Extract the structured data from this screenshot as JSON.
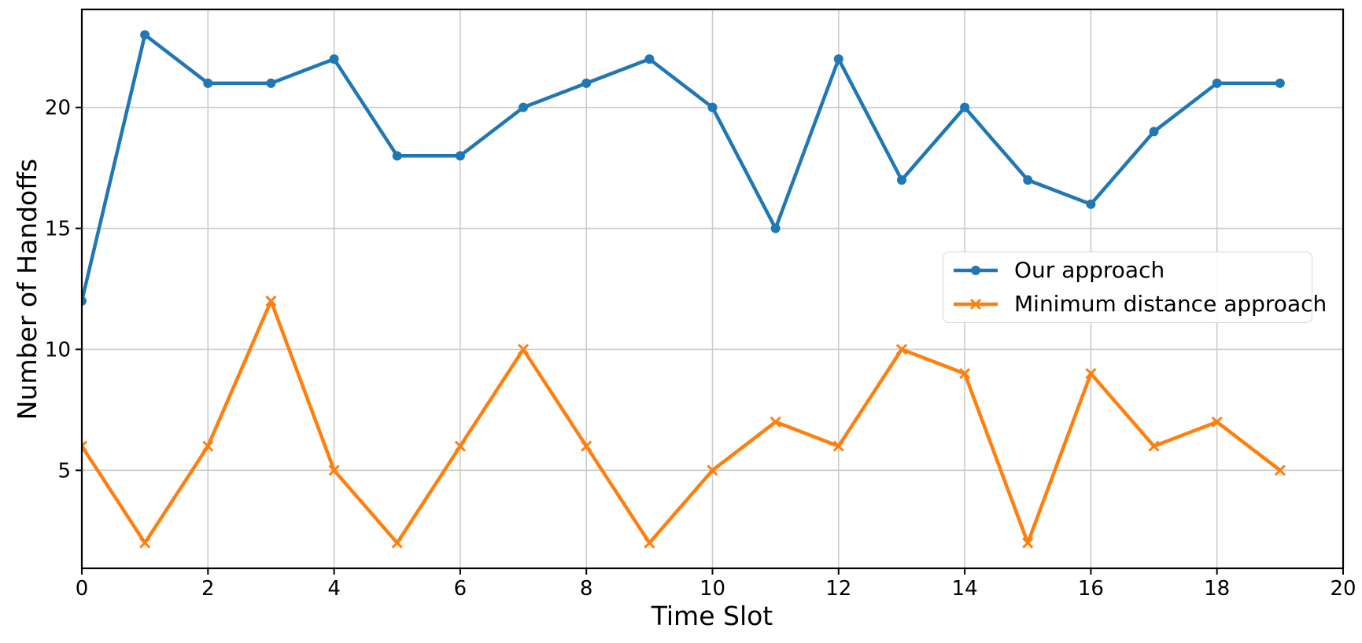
{
  "figure": {
    "background": "#ffffff"
  },
  "chart_data": {
    "type": "line",
    "title": "",
    "xlabel": "Time Slot",
    "ylabel": "Number of Handoffs",
    "x": [
      0,
      1,
      2,
      3,
      4,
      5,
      6,
      7,
      8,
      9,
      10,
      11,
      12,
      13,
      14,
      15,
      16,
      17,
      18,
      19
    ],
    "series": [
      {
        "name": "Our approach",
        "color": "#1f77b4",
        "marker": "circle",
        "values": [
          12,
          23,
          21,
          21,
          22,
          18,
          18,
          20,
          21,
          22,
          20,
          15,
          22,
          17,
          20,
          17,
          16,
          19,
          21,
          21
        ]
      },
      {
        "name": "Minimum distance approach",
        "color": "#ff7f0e",
        "marker": "x",
        "values": [
          6,
          2,
          6,
          12,
          5,
          2,
          6,
          10,
          6,
          2,
          5,
          7,
          6,
          10,
          9,
          2,
          9,
          6,
          7,
          5
        ]
      }
    ],
    "xlim": [
      0,
      20
    ],
    "ylim": [
      0.95,
      24.05
    ],
    "x_ticks": [
      0,
      2,
      4,
      6,
      8,
      10,
      12,
      14,
      16,
      18,
      20
    ],
    "y_ticks": [
      5,
      10,
      15,
      20
    ],
    "grid": true,
    "grid_color": "#cbcbcb",
    "axis_color": "#000000",
    "legend_position": "center-right"
  }
}
